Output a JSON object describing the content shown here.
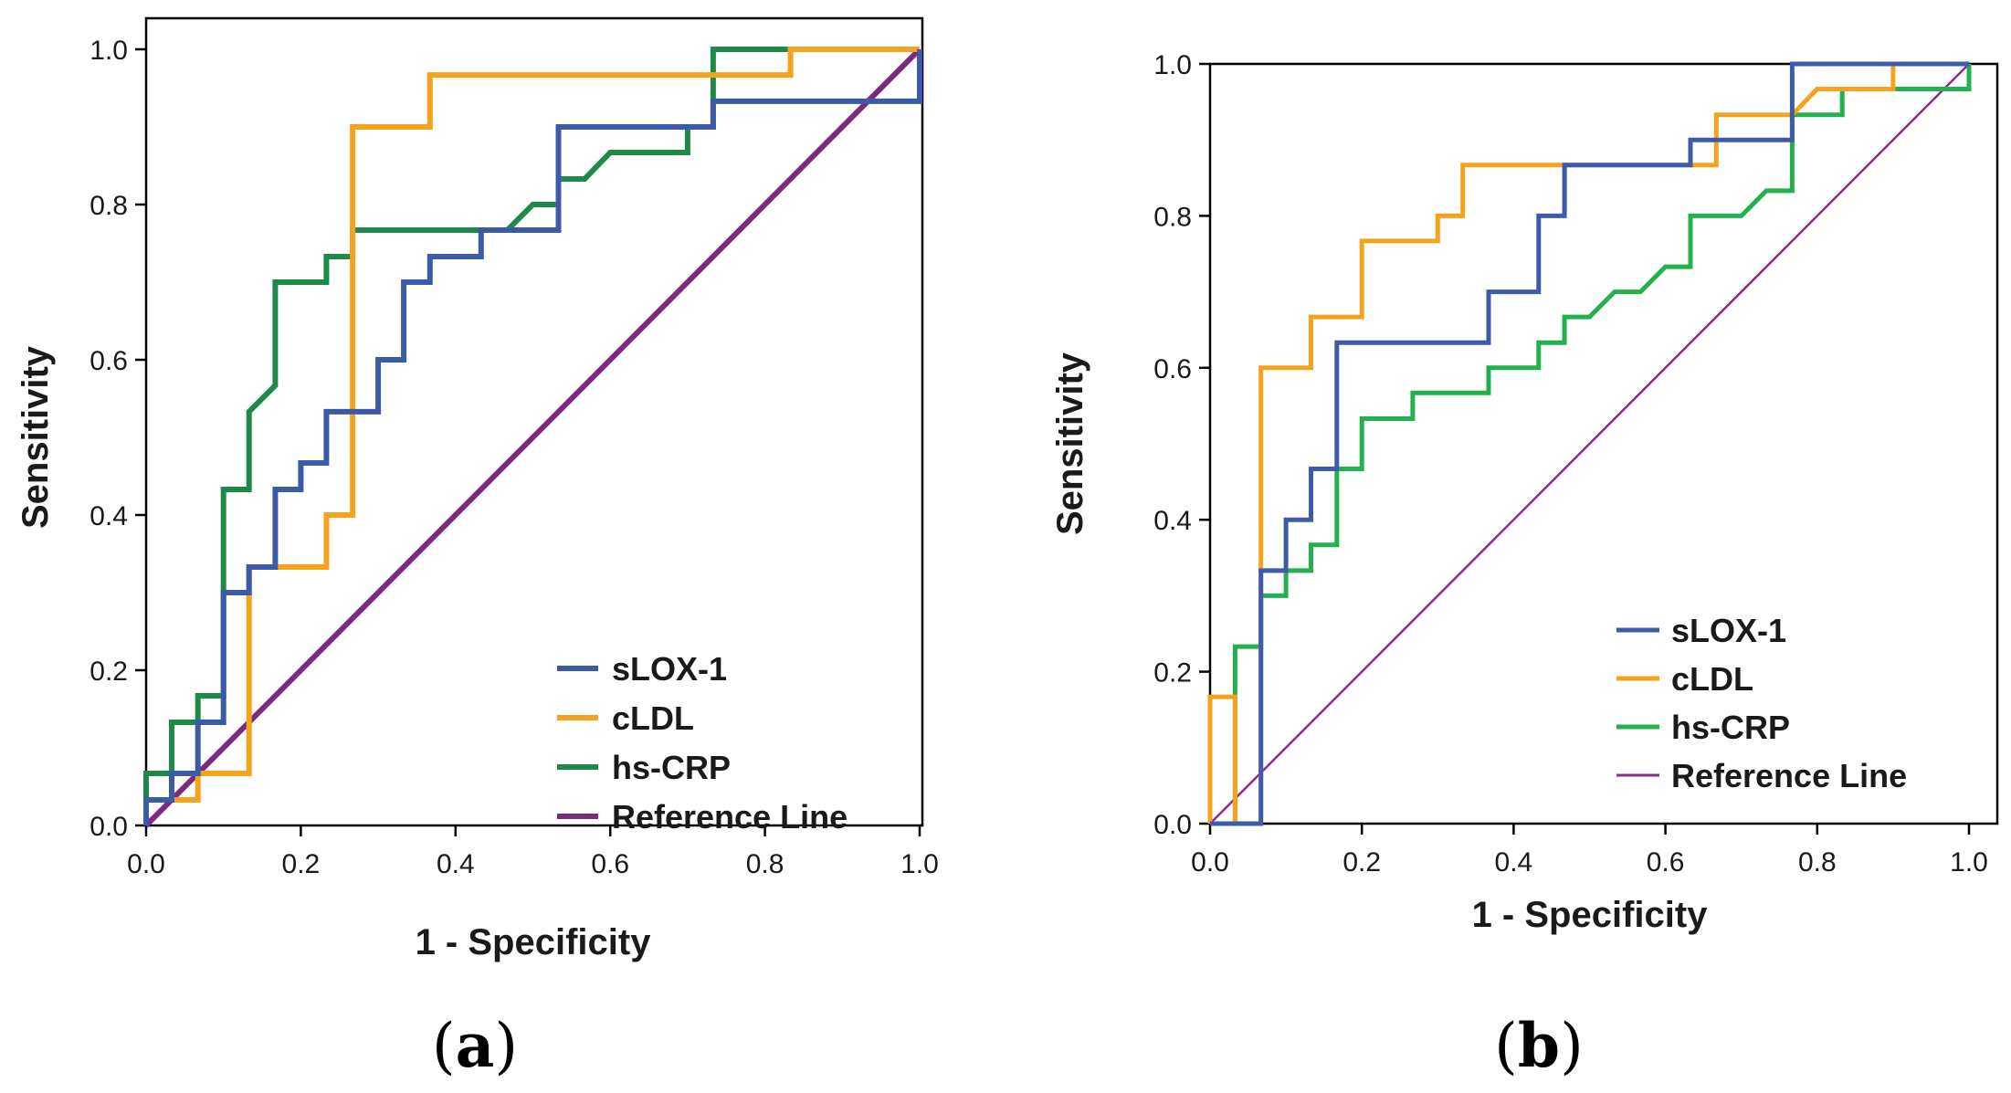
{
  "chart_data": [
    {
      "type": "line",
      "panel": "(a)",
      "panel_letter": "a",
      "title": "",
      "xlabel": "1 - Specificity",
      "ylabel": "Sensitivity",
      "xlim": [
        0,
        1
      ],
      "ylim": [
        0,
        1
      ],
      "xticks": [
        "0.0",
        "0.2",
        "0.4",
        "0.6",
        "0.8",
        "1.0"
      ],
      "yticks": [
        "0.0",
        "0.2",
        "0.4",
        "0.6",
        "0.8",
        "1.0"
      ],
      "legend_position": "bottom-right",
      "series": [
        {
          "name": "sLOX-1",
          "color": "#3b5ba8",
          "points": [
            [
              0,
              0
            ],
            [
              0,
              0.033
            ],
            [
              0.033,
              0.033
            ],
            [
              0.033,
              0.067
            ],
            [
              0.067,
              0.067
            ],
            [
              0.067,
              0.133
            ],
            [
              0.1,
              0.133
            ],
            [
              0.1,
              0.3
            ],
            [
              0.133,
              0.3
            ],
            [
              0.133,
              0.333
            ],
            [
              0.167,
              0.333
            ],
            [
              0.167,
              0.433
            ],
            [
              0.2,
              0.433
            ],
            [
              0.2,
              0.467
            ],
            [
              0.233,
              0.467
            ],
            [
              0.233,
              0.533
            ],
            [
              0.3,
              0.533
            ],
            [
              0.3,
              0.6
            ],
            [
              0.333,
              0.6
            ],
            [
              0.333,
              0.7
            ],
            [
              0.367,
              0.7
            ],
            [
              0.367,
              0.733
            ],
            [
              0.433,
              0.733
            ],
            [
              0.433,
              0.767
            ],
            [
              0.533,
              0.767
            ],
            [
              0.533,
              0.9
            ],
            [
              0.733,
              0.9
            ],
            [
              0.733,
              0.933
            ],
            [
              1,
              0.933
            ],
            [
              1,
              1
            ]
          ]
        },
        {
          "name": "cLDL",
          "color": "#f5a31d",
          "points": [
            [
              0,
              0
            ],
            [
              0,
              0.033
            ],
            [
              0.067,
              0.033
            ],
            [
              0.067,
              0.067
            ],
            [
              0.133,
              0.067
            ],
            [
              0.133,
              0.333
            ],
            [
              0.233,
              0.333
            ],
            [
              0.233,
              0.4
            ],
            [
              0.267,
              0.4
            ],
            [
              0.267,
              0.9
            ],
            [
              0.367,
              0.9
            ],
            [
              0.367,
              0.967
            ],
            [
              0.833,
              0.967
            ],
            [
              0.833,
              1
            ],
            [
              1,
              1
            ]
          ]
        },
        {
          "name": "hs-CRP",
          "color": "#1e8a4a",
          "points": [
            [
              0,
              0
            ],
            [
              0,
              0.067
            ],
            [
              0.033,
              0.067
            ],
            [
              0.033,
              0.133
            ],
            [
              0.067,
              0.133
            ],
            [
              0.067,
              0.167
            ],
            [
              0.1,
              0.167
            ],
            [
              0.1,
              0.433
            ],
            [
              0.133,
              0.433
            ],
            [
              0.133,
              0.533
            ],
            [
              0.167,
              0.567
            ],
            [
              0.167,
              0.7
            ],
            [
              0.233,
              0.7
            ],
            [
              0.233,
              0.733
            ],
            [
              0.267,
              0.733
            ],
            [
              0.267,
              0.767
            ],
            [
              0.467,
              0.767
            ],
            [
              0.5,
              0.8
            ],
            [
              0.533,
              0.8
            ],
            [
              0.533,
              0.833
            ],
            [
              0.567,
              0.833
            ],
            [
              0.6,
              0.867
            ],
            [
              0.7,
              0.867
            ],
            [
              0.7,
              0.9
            ],
            [
              0.733,
              0.9
            ],
            [
              0.733,
              1
            ],
            [
              1,
              1
            ]
          ]
        },
        {
          "name": "Reference Line",
          "color": "#7d2a7d",
          "points": [
            [
              0,
              0
            ],
            [
              1,
              1
            ]
          ]
        }
      ]
    },
    {
      "type": "line",
      "panel": "(b)",
      "panel_letter": "b",
      "title": "",
      "xlabel": "1 - Specificity",
      "ylabel": "Sensitivity",
      "xlim": [
        0,
        1
      ],
      "ylim": [
        0,
        1
      ],
      "xticks": [
        "0.0",
        "0.2",
        "0.4",
        "0.6",
        "0.8",
        "1.0"
      ],
      "yticks": [
        "0.0",
        "0.2",
        "0.4",
        "0.6",
        "0.8",
        "1.0"
      ],
      "legend_position": "bottom-right",
      "series": [
        {
          "name": "sLOX-1",
          "color": "#3e5ba8",
          "points": [
            [
              0,
              0
            ],
            [
              0.067,
              0
            ],
            [
              0.067,
              0.033
            ],
            [
              0.067,
              0.333
            ],
            [
              0.1,
              0.333
            ],
            [
              0.1,
              0.4
            ],
            [
              0.133,
              0.4
            ],
            [
              0.133,
              0.467
            ],
            [
              0.167,
              0.467
            ],
            [
              0.167,
              0.633
            ],
            [
              0.367,
              0.633
            ],
            [
              0.367,
              0.7
            ],
            [
              0.433,
              0.7
            ],
            [
              0.433,
              0.8
            ],
            [
              0.467,
              0.8
            ],
            [
              0.467,
              0.867
            ],
            [
              0.633,
              0.867
            ],
            [
              0.633,
              0.9
            ],
            [
              0.767,
              0.9
            ],
            [
              0.767,
              1
            ],
            [
              1,
              1
            ]
          ]
        },
        {
          "name": "cLDL",
          "color": "#f5a31d",
          "points": [
            [
              0,
              0
            ],
            [
              0,
              0.167
            ],
            [
              0.033,
              0.167
            ],
            [
              0.033,
              0
            ],
            [
              0.067,
              0
            ],
            [
              0.067,
              0.6
            ],
            [
              0.133,
              0.6
            ],
            [
              0.133,
              0.667
            ],
            [
              0.2,
              0.667
            ],
            [
              0.2,
              0.767
            ],
            [
              0.3,
              0.767
            ],
            [
              0.3,
              0.8
            ],
            [
              0.333,
              0.8
            ],
            [
              0.333,
              0.867
            ],
            [
              0.667,
              0.867
            ],
            [
              0.667,
              0.933
            ],
            [
              0.767,
              0.933
            ],
            [
              0.8,
              0.967
            ],
            [
              0.9,
              0.967
            ],
            [
              0.9,
              1
            ],
            [
              1,
              1
            ]
          ]
        },
        {
          "name": "hs-CRP",
          "color": "#22b14c",
          "points": [
            [
              0,
              0
            ],
            [
              0.033,
              0
            ],
            [
              0.033,
              0.233
            ],
            [
              0.067,
              0.233
            ],
            [
              0.067,
              0.3
            ],
            [
              0.1,
              0.3
            ],
            [
              0.1,
              0.333
            ],
            [
              0.133,
              0.333
            ],
            [
              0.133,
              0.367
            ],
            [
              0.167,
              0.367
            ],
            [
              0.167,
              0.467
            ],
            [
              0.2,
              0.467
            ],
            [
              0.2,
              0.533
            ],
            [
              0.267,
              0.533
            ],
            [
              0.267,
              0.567
            ],
            [
              0.367,
              0.567
            ],
            [
              0.367,
              0.6
            ],
            [
              0.433,
              0.6
            ],
            [
              0.433,
              0.633
            ],
            [
              0.467,
              0.633
            ],
            [
              0.467,
              0.667
            ],
            [
              0.5,
              0.667
            ],
            [
              0.533,
              0.7
            ],
            [
              0.567,
              0.7
            ],
            [
              0.6,
              0.733
            ],
            [
              0.633,
              0.733
            ],
            [
              0.633,
              0.8
            ],
            [
              0.7,
              0.8
            ],
            [
              0.733,
              0.833
            ],
            [
              0.767,
              0.833
            ],
            [
              0.767,
              0.933
            ],
            [
              0.833,
              0.933
            ],
            [
              0.833,
              0.967
            ],
            [
              1,
              0.967
            ],
            [
              1,
              1
            ]
          ]
        },
        {
          "name": "Reference Line",
          "color": "#8a2d8a",
          "points": [
            [
              0,
              0
            ],
            [
              1,
              1
            ]
          ]
        }
      ]
    }
  ]
}
